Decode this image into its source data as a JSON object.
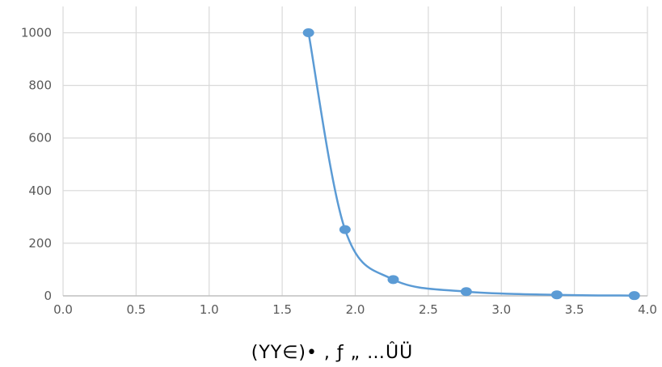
{
  "chart_data": {
    "type": "scatter",
    "title": "",
    "xlabel": "(YY∈)• , ƒ „ …ÛÜ",
    "ylabel": "",
    "xlim": [
      0,
      4
    ],
    "ylim": [
      0,
      1100
    ],
    "x_ticks": [
      "0.0",
      "0.5",
      "1.0",
      "1.5",
      "2.0",
      "2.5",
      "3.0",
      "3.5",
      "4.0"
    ],
    "y_ticks": [
      "0",
      "200",
      "400",
      "600",
      "800",
      "1000"
    ],
    "grid": true,
    "smooth_line": true,
    "series": [
      {
        "x": [
          1.68,
          1.93,
          2.26,
          2.76,
          3.38,
          3.91
        ],
        "y": [
          1000,
          252,
          62,
          16,
          4,
          1
        ]
      }
    ],
    "colors": {
      "series": "#5b9bd5",
      "grid": "#d9d9d9",
      "axis": "#bfbfbf"
    }
  }
}
